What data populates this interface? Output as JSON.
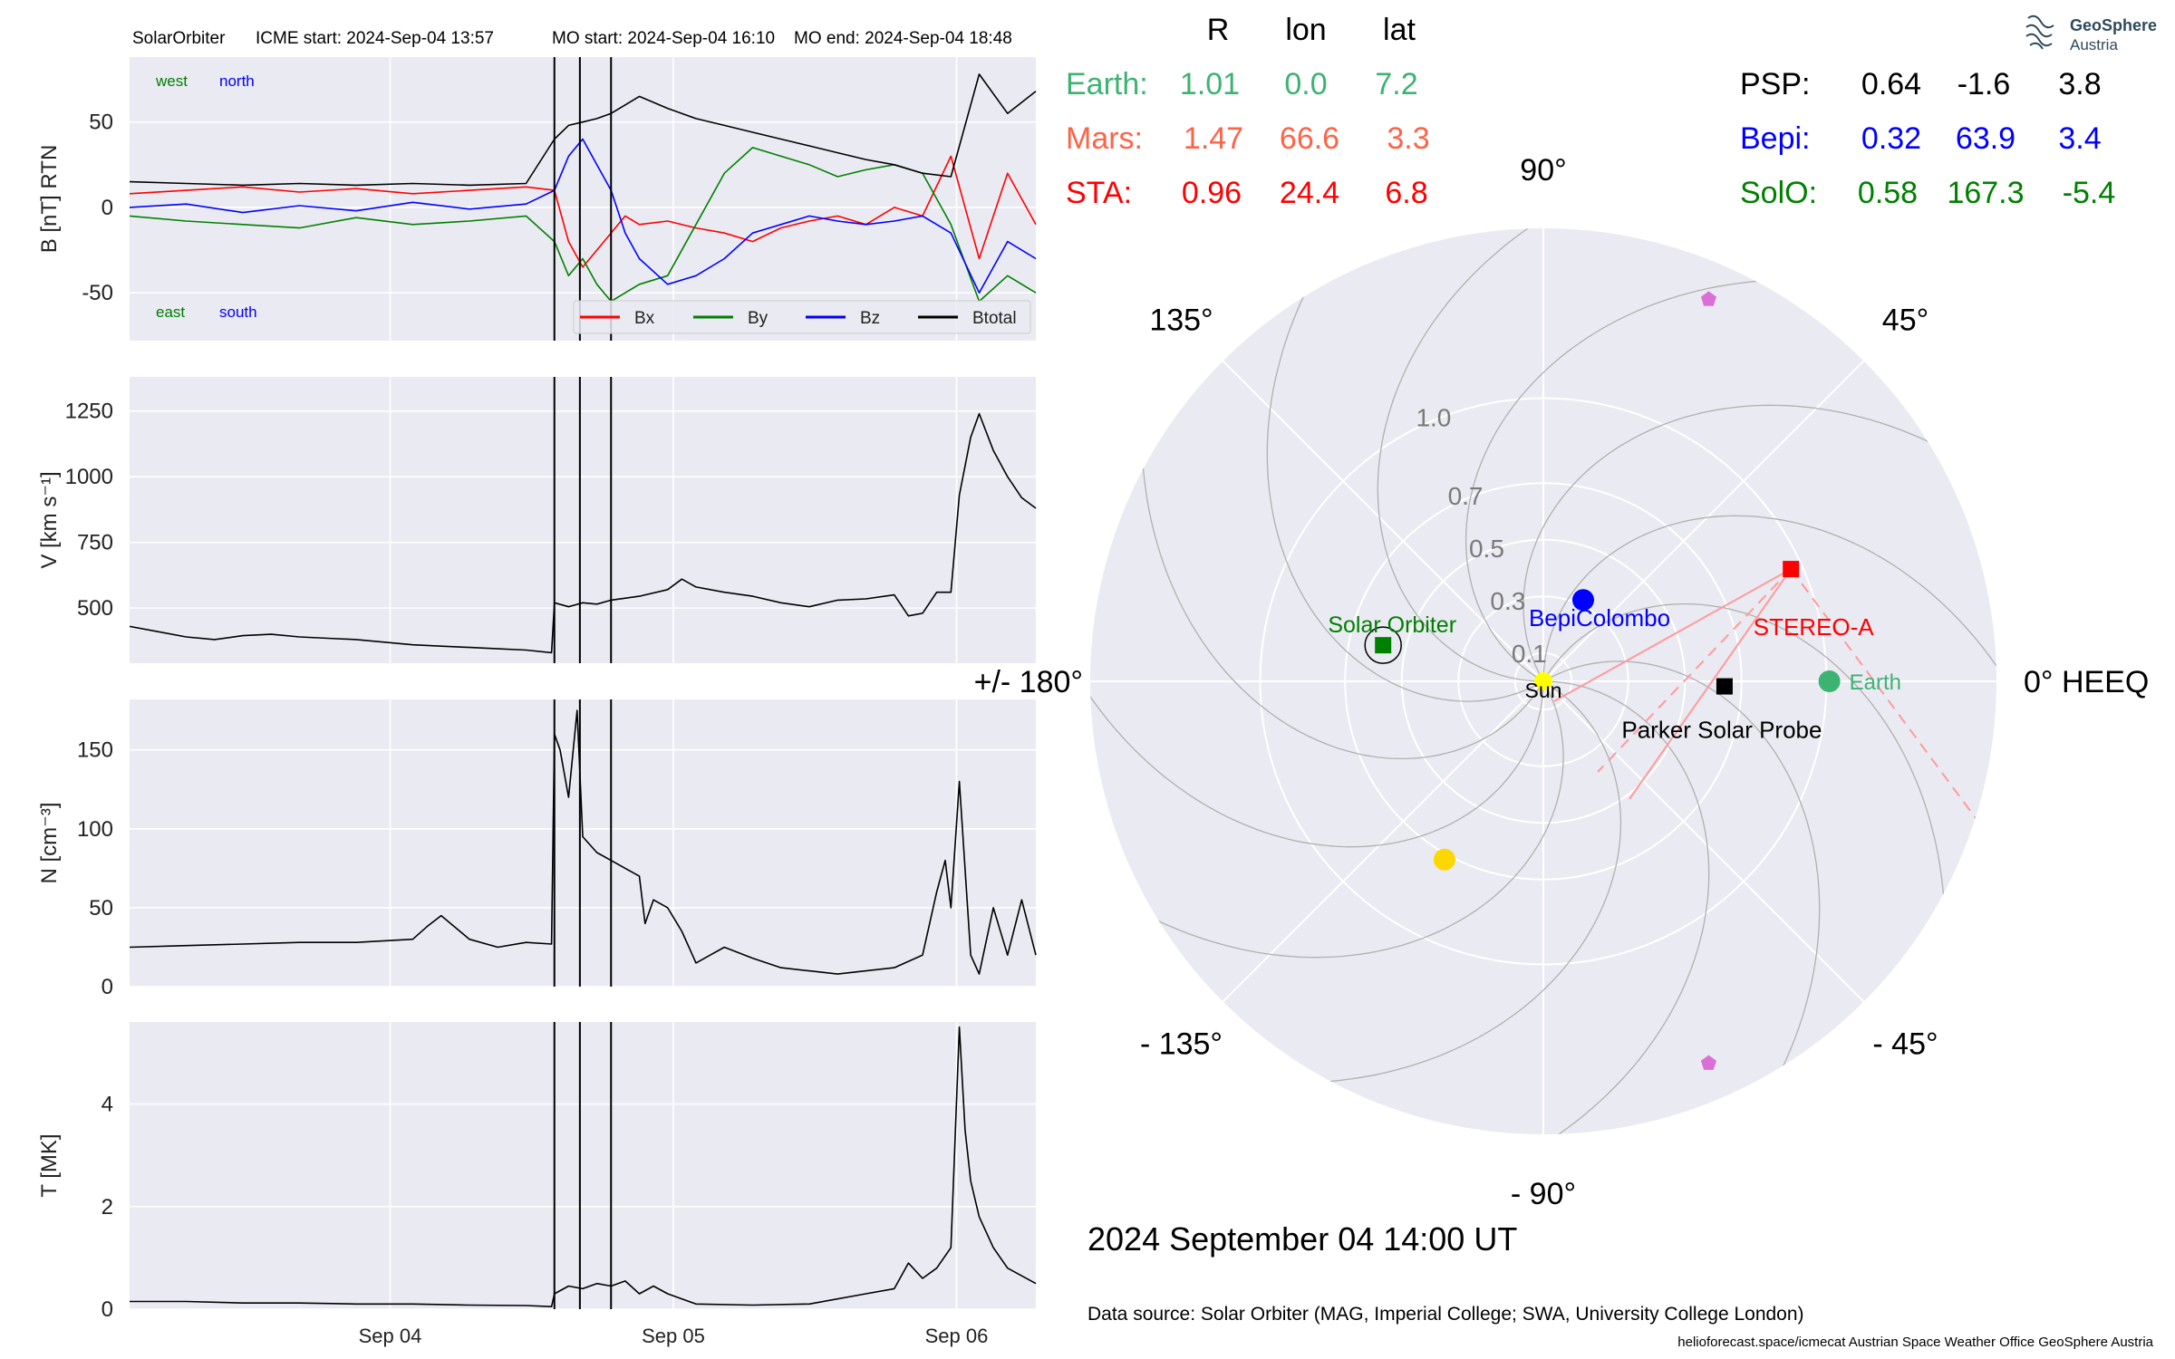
{
  "header": {
    "spacecraft": "SolarOrbiter",
    "icme_start": "ICME start: 2024-Sep-04 13:57",
    "mo_start": "MO start: 2024-Sep-04 16:10",
    "mo_end": "MO end: 2024-Sep-04 18:48"
  },
  "branding": {
    "logo_line1": "GeoSphere",
    "logo_line2": "Austria"
  },
  "positions_table": {
    "columns": [
      "R",
      "lon",
      "lat"
    ],
    "left_rows": [
      {
        "name": "Earth:",
        "r": "1.01",
        "lon": "0.0",
        "lat": "7.2",
        "color": "#3cb371"
      },
      {
        "name": "Mars:",
        "r": "1.47",
        "lon": "66.6",
        "lat": "3.3",
        "color": "#ff6347"
      },
      {
        "name": "STA:",
        "r": "0.96",
        "lon": "24.4",
        "lat": "6.8",
        "color": "#ff0000"
      }
    ],
    "right_rows": [
      {
        "name": "PSP:",
        "r": "0.64",
        "lon": "-1.6",
        "lat": "3.8",
        "color": "#000000"
      },
      {
        "name": "Bepi:",
        "r": "0.32",
        "lon": "63.9",
        "lat": "3.4",
        "color": "#0000ff"
      },
      {
        "name": "SolO:",
        "r": "0.58",
        "lon": "167.3",
        "lat": "-5.4",
        "color": "#008000"
      }
    ]
  },
  "footer": {
    "timestamp": "2024 September 04  14:00 UT",
    "data_source": "Data source: Solar Orbiter (MAG, Imperial College; SWA, University College London)",
    "credits": "helioforecast.space/icmecat   Austrian Space Weather Office   GeoSphere Austria"
  },
  "chart_data": [
    {
      "type": "line",
      "panel": "magnetic-field",
      "ylabel": "B [nT] RTN",
      "ylim": [
        -78,
        88
      ],
      "yticks": [
        -50,
        0,
        50
      ],
      "xlim": [
        0,
        3.2
      ],
      "xticks": [
        0.92,
        1.92,
        2.92
      ],
      "xticklabels": [
        "Sep 04",
        "Sep 05",
        "Sep 06"
      ],
      "grid": true,
      "legend_placement": "lower-right",
      "corner_labels": {
        "west": "west",
        "north": "north",
        "east": "east",
        "south": "south"
      },
      "event_lines": [
        1.5,
        1.59,
        1.7
      ],
      "series": [
        {
          "name": "Bx",
          "color": "#ff0000",
          "x": [
            0,
            0.2,
            0.4,
            0.6,
            0.8,
            1.0,
            1.2,
            1.4,
            1.5,
            1.55,
            1.6,
            1.65,
            1.7,
            1.75,
            1.8,
            1.9,
            2.0,
            2.1,
            2.2,
            2.3,
            2.4,
            2.5,
            2.6,
            2.7,
            2.8,
            2.9,
            3.0,
            3.1,
            3.2
          ],
          "y": [
            8,
            10,
            12,
            9,
            11,
            8,
            10,
            12,
            10,
            -20,
            -35,
            -25,
            -15,
            -5,
            -10,
            -8,
            -12,
            -15,
            -20,
            -12,
            -8,
            -5,
            -10,
            0,
            -5,
            30,
            -30,
            20,
            -10
          ]
        },
        {
          "name": "By",
          "color": "#008000",
          "x": [
            0,
            0.2,
            0.4,
            0.6,
            0.8,
            1.0,
            1.2,
            1.4,
            1.5,
            1.55,
            1.6,
            1.65,
            1.7,
            1.75,
            1.8,
            1.9,
            2.0,
            2.1,
            2.2,
            2.3,
            2.4,
            2.5,
            2.6,
            2.7,
            2.8,
            2.9,
            3.0,
            3.1,
            3.2
          ],
          "y": [
            -5,
            -8,
            -10,
            -12,
            -6,
            -10,
            -8,
            -5,
            -20,
            -40,
            -30,
            -45,
            -55,
            -50,
            -45,
            -40,
            -10,
            20,
            35,
            30,
            25,
            18,
            22,
            25,
            20,
            -10,
            -55,
            -40,
            -50
          ]
        },
        {
          "name": "Bz",
          "color": "#0000ff",
          "x": [
            0,
            0.2,
            0.4,
            0.6,
            0.8,
            1.0,
            1.2,
            1.4,
            1.5,
            1.55,
            1.6,
            1.65,
            1.7,
            1.75,
            1.8,
            1.9,
            2.0,
            2.1,
            2.2,
            2.3,
            2.4,
            2.5,
            2.6,
            2.7,
            2.8,
            2.9,
            3.0,
            3.1,
            3.2
          ],
          "y": [
            0,
            2,
            -3,
            1,
            -2,
            3,
            -1,
            2,
            10,
            30,
            40,
            25,
            10,
            -15,
            -30,
            -45,
            -40,
            -30,
            -15,
            -10,
            -5,
            -8,
            -10,
            -8,
            -5,
            -15,
            -50,
            -20,
            -30
          ]
        },
        {
          "name": "Btotal",
          "color": "#000000",
          "x": [
            0,
            0.2,
            0.4,
            0.6,
            0.8,
            1.0,
            1.2,
            1.4,
            1.5,
            1.55,
            1.6,
            1.65,
            1.7,
            1.75,
            1.8,
            1.9,
            2.0,
            2.1,
            2.2,
            2.3,
            2.4,
            2.5,
            2.6,
            2.7,
            2.8,
            2.9,
            3.0,
            3.1,
            3.2
          ],
          "y": [
            15,
            14,
            13,
            14,
            13,
            14,
            13,
            14,
            40,
            48,
            50,
            52,
            55,
            60,
            65,
            58,
            52,
            48,
            44,
            40,
            36,
            32,
            28,
            25,
            20,
            18,
            78,
            55,
            68
          ]
        }
      ]
    },
    {
      "type": "line",
      "panel": "speed",
      "ylabel": "V [km s⁻¹]",
      "ylim": [
        290,
        1380
      ],
      "yticks": [
        500,
        750,
        1000,
        1250
      ],
      "xlim": [
        0,
        3.2
      ],
      "grid": true,
      "event_lines": [
        1.5,
        1.59,
        1.7
      ],
      "series": [
        {
          "name": "",
          "color": "#000000",
          "x": [
            0,
            0.1,
            0.2,
            0.3,
            0.4,
            0.5,
            0.6,
            0.7,
            0.8,
            0.9,
            1.0,
            1.1,
            1.2,
            1.3,
            1.4,
            1.49,
            1.5,
            1.55,
            1.6,
            1.65,
            1.7,
            1.8,
            1.9,
            1.95,
            2.0,
            2.1,
            2.2,
            2.3,
            2.4,
            2.5,
            2.6,
            2.7,
            2.75,
            2.8,
            2.85,
            2.9,
            2.93,
            2.97,
            3.0,
            3.05,
            3.1,
            3.15,
            3.2
          ],
          "y": [
            430,
            410,
            390,
            380,
            395,
            400,
            390,
            385,
            380,
            370,
            360,
            355,
            350,
            345,
            340,
            330,
            520,
            505,
            520,
            515,
            530,
            545,
            570,
            610,
            580,
            560,
            545,
            520,
            505,
            530,
            535,
            550,
            470,
            480,
            560,
            560,
            930,
            1150,
            1240,
            1100,
            1000,
            920,
            880
          ]
        }
      ]
    },
    {
      "type": "line",
      "panel": "density",
      "ylabel": "N [cm⁻³]",
      "ylim": [
        0,
        182
      ],
      "yticks": [
        0,
        50,
        100,
        150
      ],
      "xlim": [
        0,
        3.2
      ],
      "grid": true,
      "event_lines": [
        1.5,
        1.59,
        1.7
      ],
      "series": [
        {
          "name": "",
          "color": "#000000",
          "x": [
            0,
            0.2,
            0.4,
            0.6,
            0.8,
            1.0,
            1.05,
            1.1,
            1.2,
            1.3,
            1.4,
            1.49,
            1.5,
            1.52,
            1.55,
            1.58,
            1.6,
            1.65,
            1.7,
            1.75,
            1.8,
            1.82,
            1.85,
            1.9,
            1.95,
            2.0,
            2.05,
            2.1,
            2.2,
            2.3,
            2.4,
            2.5,
            2.6,
            2.7,
            2.8,
            2.85,
            2.88,
            2.9,
            2.93,
            2.97,
            3.0,
            3.05,
            3.1,
            3.15,
            3.2
          ],
          "y": [
            25,
            26,
            27,
            28,
            28,
            30,
            38,
            45,
            30,
            25,
            28,
            27,
            160,
            150,
            120,
            175,
            95,
            85,
            80,
            75,
            70,
            40,
            55,
            50,
            35,
            15,
            20,
            25,
            18,
            12,
            10,
            8,
            10,
            12,
            20,
            60,
            80,
            50,
            130,
            20,
            8,
            50,
            20,
            55,
            20
          ]
        }
      ]
    },
    {
      "type": "line",
      "panel": "temperature",
      "ylabel": "T [MK]",
      "ylim": [
        0,
        5.6
      ],
      "yticks": [
        0,
        2,
        4
      ],
      "xlim": [
        0,
        3.2
      ],
      "xticks": [
        0.92,
        1.92,
        2.92
      ],
      "xticklabels": [
        "Sep 04",
        "Sep 05",
        "Sep 06"
      ],
      "grid": true,
      "event_lines": [
        1.5,
        1.59,
        1.7
      ],
      "series": [
        {
          "name": "",
          "color": "#000000",
          "x": [
            0,
            0.2,
            0.4,
            0.6,
            0.8,
            1.0,
            1.2,
            1.4,
            1.49,
            1.5,
            1.55,
            1.6,
            1.65,
            1.7,
            1.75,
            1.8,
            1.85,
            1.9,
            2.0,
            2.2,
            2.4,
            2.6,
            2.7,
            2.75,
            2.8,
            2.85,
            2.9,
            2.93,
            2.95,
            2.97,
            3.0,
            3.05,
            3.1,
            3.2
          ],
          "y": [
            0.15,
            0.15,
            0.12,
            0.12,
            0.1,
            0.1,
            0.08,
            0.07,
            0.05,
            0.3,
            0.45,
            0.4,
            0.5,
            0.45,
            0.55,
            0.3,
            0.45,
            0.3,
            0.1,
            0.08,
            0.1,
            0.3,
            0.4,
            0.9,
            0.6,
            0.8,
            1.2,
            5.5,
            3.5,
            2.5,
            1.8,
            1.2,
            0.8,
            0.5
          ]
        }
      ]
    },
    {
      "type": "scatter",
      "panel": "polar-positions",
      "projection": "polar",
      "rlim": [
        0,
        1.6
      ],
      "radial_tick_labels": [
        "0.1",
        "0.3",
        "0.5",
        "0.7",
        "1.0"
      ],
      "radial_ticks": [
        0.1,
        0.3,
        0.5,
        0.7,
        1.0
      ],
      "angle_labels": [
        {
          "deg": 0,
          "label": "0° HEEQ"
        },
        {
          "deg": 45,
          "label": "45°"
        },
        {
          "deg": 90,
          "label": "90°"
        },
        {
          "deg": 135,
          "label": "135°"
        },
        {
          "deg": 180,
          "label": "+/- 180°"
        },
        {
          "deg": -135,
          "label": "- 135°"
        },
        {
          "deg": -90,
          "label": "- 90°"
        },
        {
          "deg": -45,
          "label": "- 45°"
        }
      ],
      "bodies": [
        {
          "name": "Sun",
          "r": 0,
          "lon": 0,
          "marker": "circle",
          "color": "#ffff00"
        },
        {
          "name": "Earth",
          "r": 1.01,
          "lon": 0.0,
          "marker": "circle",
          "color": "#3cb371"
        },
        {
          "name": "",
          "r": 1.47,
          "lon": 66.6,
          "marker": "pentagon",
          "color": "#da70d6"
        },
        {
          "name": "STEREO-A",
          "r": 0.96,
          "lon": 24.4,
          "marker": "square",
          "color": "#ff0000"
        },
        {
          "name": "Parker Solar Probe",
          "r": 0.64,
          "lon": -1.6,
          "marker": "square",
          "color": "#000000"
        },
        {
          "name": "BepiColombo",
          "r": 0.32,
          "lon": 63.9,
          "marker": "circle",
          "color": "#0000ff"
        },
        {
          "name": "Solar Orbiter",
          "r": 0.58,
          "lon": 167.3,
          "marker": "square",
          "color": "#008000"
        },
        {
          "name": "",
          "r": 0.72,
          "lon": -119.0,
          "marker": "circle",
          "color": "#ffd700"
        },
        {
          "name": "",
          "r": 1.47,
          "lon": -66.6,
          "marker": "pentagon",
          "color": "#da70d6"
        }
      ]
    }
  ]
}
